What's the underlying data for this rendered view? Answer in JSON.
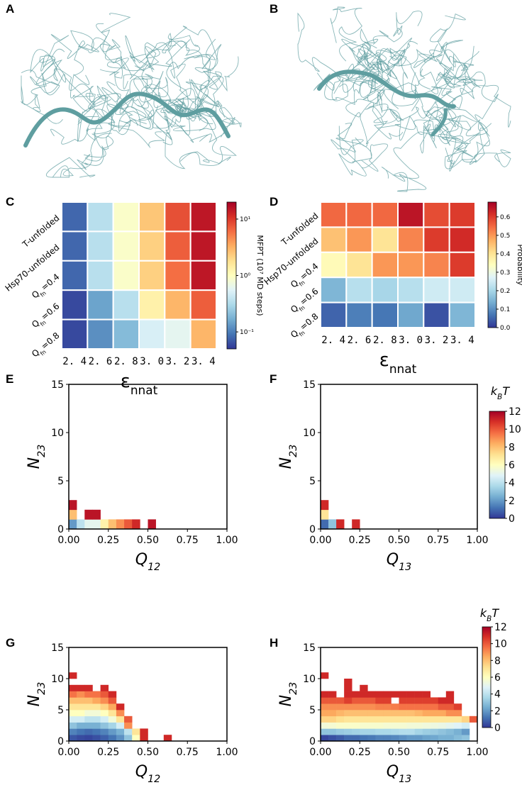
{
  "images": [
    {
      "label": "A"
    },
    {
      "label": "B"
    }
  ],
  "chart_data": [
    {
      "type": "heatmap",
      "label": "C",
      "colormap": "RdYlBu_r",
      "log_color": true,
      "x_categories": [
        "2. 4",
        "2. 6",
        "2. 8",
        "3. 0",
        "3. 2",
        "3. 4"
      ],
      "y_categories": [
        "T-unfolded",
        "Hsp70-unfolded",
        {
          "symbol": "Q",
          "subscript": "fn",
          "suffix": "=0.4"
        },
        {
          "symbol": "Q",
          "subscript": "fn",
          "suffix": "=0.6"
        },
        {
          "symbol": "Q",
          "subscript": "fn",
          "suffix": "=0.8"
        }
      ],
      "x_label": {
        "symbol": "ε",
        "subscript": "nnat"
      },
      "values": [
        [
          0.08,
          0.35,
          0.9,
          2.5,
          8,
          15
        ],
        [
          0.08,
          0.35,
          0.9,
          2.2,
          7,
          15
        ],
        [
          0.08,
          0.35,
          0.9,
          2.2,
          6,
          15
        ],
        [
          0.06,
          0.15,
          0.35,
          1.3,
          3,
          7
        ],
        [
          0.06,
          0.12,
          0.2,
          0.5,
          0.6,
          3
        ]
      ],
      "clim": [
        0.05,
        20
      ],
      "cticks": [
        {
          "value": 0.1,
          "label": "10⁻¹"
        },
        {
          "value": 1,
          "label": "10⁰"
        },
        {
          "value": 10,
          "label": "10¹"
        }
      ],
      "clabel": "MFPT (10⁷ MD steps)"
    },
    {
      "type": "heatmap",
      "label": "D",
      "colormap": "RdYlBu_r",
      "log_color": false,
      "x_categories": [
        "2. 4",
        "2. 6",
        "2. 8",
        "3. 0",
        "3. 2",
        "3. 4"
      ],
      "y_categories": [
        "T-unfolded",
        "Hsp70-unfolded",
        {
          "symbol": "Q",
          "subscript": "fn",
          "suffix": "=0.4"
        },
        {
          "symbol": "Q",
          "subscript": "fn",
          "suffix": "=0.6"
        },
        {
          "symbol": "Q",
          "subscript": "fn",
          "suffix": "=0.8"
        }
      ],
      "x_label": {
        "symbol": "ε",
        "subscript": "nnat"
      },
      "values": [
        [
          0.55,
          0.55,
          0.55,
          0.65,
          0.58,
          0.6
        ],
        [
          0.45,
          0.5,
          0.4,
          0.52,
          0.6,
          0.62
        ],
        [
          0.35,
          0.4,
          0.5,
          0.5,
          0.52,
          0.6
        ],
        [
          0.15,
          0.22,
          0.2,
          0.22,
          0.25,
          0.25
        ],
        [
          0.05,
          0.08,
          0.07,
          0.13,
          0.03,
          0.15
        ]
      ],
      "clim": [
        0,
        0.68
      ],
      "cticks": [
        {
          "value": 0,
          "label": "0.0"
        },
        0.1,
        0.2,
        0.3,
        0.4,
        0.5,
        0.6
      ],
      "clabel": "Probability"
    },
    {
      "type": "histogram2d",
      "label": "E",
      "colormap": "RdYlBu_r",
      "x_label": {
        "symbol": "Q",
        "subscript": "12"
      },
      "y_label": {
        "symbol": "N",
        "subscript": "23"
      },
      "xlim": [
        0,
        1
      ],
      "ylim": [
        0,
        15
      ],
      "xticks": [
        {
          "value": 0,
          "label": "0.00"
        },
        0.25,
        {
          "value": 0.5,
          "label": "0.50"
        },
        0.75,
        {
          "value": 1,
          "label": "1.00"
        }
      ],
      "yticks": [
        0,
        5,
        10,
        15
      ],
      "xbins": [
        0,
        0.05,
        0.1,
        0.15,
        0.2,
        0.25,
        0.3,
        0.35,
        0.4,
        0.45,
        0.5,
        0.55,
        0.6,
        0.65,
        0.7,
        0.75,
        0.8,
        0.85,
        0.9,
        0.95,
        1
      ],
      "ybins": [
        0,
        1,
        2,
        3
      ],
      "clim": [
        0,
        12
      ],
      "values": [
        [
          2,
          4,
          5,
          5,
          6.5,
          8,
          9,
          10,
          11,
          null,
          11.5,
          null,
          null,
          null,
          null,
          null,
          null,
          null,
          null,
          null
        ],
        [
          8,
          null,
          11.5,
          11.5,
          null,
          null,
          null,
          null,
          null,
          null,
          null,
          null,
          null,
          null,
          null,
          null,
          null,
          null,
          null,
          null
        ],
        [
          11.5,
          null,
          null,
          null,
          null,
          null,
          null,
          null,
          null,
          null,
          null,
          null,
          null,
          null,
          null,
          null,
          null,
          null,
          null,
          null
        ]
      ]
    },
    {
      "type": "histogram2d",
      "label": "F",
      "colormap": "RdYlBu_r",
      "x_label": {
        "symbol": "Q",
        "subscript": "13"
      },
      "y_label": {
        "symbol": "N",
        "subscript": "23"
      },
      "xlim": [
        0,
        1
      ],
      "ylim": [
        0,
        15
      ],
      "xticks": [
        {
          "value": 0,
          "label": "0.00"
        },
        0.25,
        {
          "value": 0.5,
          "label": "0.50"
        },
        0.75,
        {
          "value": 1,
          "label": "1.00"
        }
      ],
      "yticks": [
        0,
        5,
        10,
        15
      ],
      "xbins": [
        0,
        0.05,
        0.1,
        0.15,
        0.2,
        0.25,
        0.3,
        0.35,
        0.4,
        0.45,
        0.5,
        0.55,
        0.6,
        0.65,
        0.7,
        0.75,
        0.8,
        0.85,
        0.9,
        0.95,
        1
      ],
      "ybins": [
        0,
        1,
        2,
        3
      ],
      "clim": [
        0,
        12
      ],
      "cticks": [
        0,
        2,
        4,
        6,
        8,
        10,
        12
      ],
      "clabel": {
        "symbol": "k",
        "subscript": "B",
        "suffix": "T"
      },
      "values": [
        [
          1,
          3,
          11,
          null,
          11,
          null,
          null,
          null,
          null,
          null,
          null,
          null,
          null,
          null,
          null,
          null,
          null,
          null,
          null,
          null
        ],
        [
          7,
          null,
          null,
          null,
          null,
          null,
          null,
          null,
          null,
          null,
          null,
          null,
          null,
          null,
          null,
          null,
          null,
          null,
          null,
          null
        ],
        [
          11,
          null,
          null,
          null,
          null,
          null,
          null,
          null,
          null,
          null,
          null,
          null,
          null,
          null,
          null,
          null,
          null,
          null,
          null,
          null
        ]
      ]
    },
    {
      "type": "histogram2d",
      "label": "G",
      "colormap": "RdYlBu_r",
      "x_label": {
        "symbol": "Q",
        "subscript": "12"
      },
      "y_label": {
        "symbol": "N",
        "subscript": "23"
      },
      "xlim": [
        0,
        1
      ],
      "ylim": [
        0,
        15
      ],
      "xticks": [
        {
          "value": 0,
          "label": "0.00"
        },
        0.25,
        {
          "value": 0.5,
          "label": "0.50"
        },
        0.75,
        {
          "value": 1,
          "label": "1.00"
        }
      ],
      "yticks": [
        0,
        5,
        10,
        15
      ],
      "xbins": [
        0,
        0.05,
        0.1,
        0.15,
        0.2,
        0.25,
        0.3,
        0.35,
        0.4,
        0.45,
        0.5,
        0.55,
        0.6,
        0.65,
        0.7,
        0.75,
        0.8,
        0.85,
        0.9,
        0.95,
        1
      ],
      "ybins": [
        0,
        1,
        2,
        3,
        4,
        5,
        6,
        7,
        8,
        9,
        10,
        11
      ],
      "clim": [
        0,
        12
      ],
      "values": [
        [
          0.6,
          0.4,
          0.3,
          0.5,
          0.8,
          1.2,
          1.8,
          3,
          6,
          11,
          null,
          null,
          11,
          null,
          null,
          null,
          null,
          null,
          null,
          null
        ],
        [
          1.5,
          1.2,
          1,
          1.2,
          1.5,
          2,
          2.5,
          4,
          7,
          11,
          null,
          null,
          null,
          null,
          null,
          null,
          null,
          null,
          null,
          null
        ],
        [
          3,
          2.5,
          2.5,
          2.5,
          3,
          3.5,
          4.5,
          9,
          null,
          null,
          null,
          null,
          null,
          null,
          null,
          null,
          null,
          null,
          null,
          null
        ],
        [
          4.5,
          4.5,
          4,
          4,
          4.5,
          5.5,
          7,
          10,
          null,
          null,
          null,
          null,
          null,
          null,
          null,
          null,
          null,
          null,
          null,
          null
        ],
        [
          6,
          6,
          5.5,
          5.5,
          6,
          7,
          9,
          null,
          null,
          null,
          null,
          null,
          null,
          null,
          null,
          null,
          null,
          null,
          null,
          null
        ],
        [
          7,
          7,
          7,
          7,
          7.5,
          8.5,
          11,
          null,
          null,
          null,
          null,
          null,
          null,
          null,
          null,
          null,
          null,
          null,
          null,
          null
        ],
        [
          8,
          8,
          8,
          8.5,
          9,
          10,
          null,
          null,
          null,
          null,
          null,
          null,
          null,
          null,
          null,
          null,
          null,
          null,
          null,
          null
        ],
        [
          9.5,
          9,
          9.5,
          9.5,
          10,
          11,
          null,
          null,
          null,
          null,
          null,
          null,
          null,
          null,
          null,
          null,
          null,
          null,
          null,
          null
        ],
        [
          11,
          11,
          11,
          null,
          11,
          null,
          null,
          null,
          null,
          null,
          null,
          null,
          null,
          null,
          null,
          null,
          null,
          null,
          null,
          null
        ],
        [
          null,
          null,
          null,
          null,
          null,
          null,
          null,
          null,
          null,
          null,
          null,
          null,
          null,
          null,
          null,
          null,
          null,
          null,
          null,
          null
        ],
        [
          11,
          null,
          null,
          null,
          null,
          null,
          null,
          null,
          null,
          null,
          null,
          null,
          null,
          null,
          null,
          null,
          null,
          null,
          null,
          null
        ]
      ]
    },
    {
      "type": "histogram2d",
      "label": "H",
      "colormap": "RdYlBu_r",
      "x_label": {
        "symbol": "Q",
        "subscript": "13"
      },
      "y_label": {
        "symbol": "N",
        "subscript": "23"
      },
      "xlim": [
        0,
        1
      ],
      "ylim": [
        0,
        15
      ],
      "xticks": [
        {
          "value": 0,
          "label": "0.00"
        },
        0.25,
        {
          "value": 0.5,
          "label": "0.50"
        },
        0.75,
        {
          "value": 1,
          "label": "1.00"
        }
      ],
      "yticks": [
        0,
        5,
        10,
        15
      ],
      "xbins": [
        0,
        0.05,
        0.1,
        0.15,
        0.2,
        0.25,
        0.3,
        0.35,
        0.4,
        0.45,
        0.5,
        0.55,
        0.6,
        0.65,
        0.7,
        0.75,
        0.8,
        0.85,
        0.9,
        0.95,
        1
      ],
      "ybins": [
        0,
        1,
        2,
        3,
        4,
        5,
        6,
        7,
        8,
        9,
        10,
        11
      ],
      "clim": [
        0,
        12
      ],
      "cticks": [
        0,
        2,
        4,
        6,
        8,
        10,
        12
      ],
      "clabel": {
        "symbol": "k",
        "subscript": "B",
        "suffix": "T"
      },
      "values": [
        [
          0.3,
          0.5,
          0.7,
          1,
          1,
          1.2,
          1.3,
          1.5,
          1.5,
          1.6,
          1.8,
          2,
          2,
          2.2,
          2.3,
          2.5,
          2.5,
          2.8,
          3,
          null
        ],
        [
          3,
          3,
          3.2,
          3.3,
          3.4,
          3.5,
          3.5,
          3.6,
          3.6,
          3.7,
          3.8,
          3.8,
          3.5,
          3.3,
          3.2,
          3,
          2.8,
          2.5,
          2,
          null
        ],
        [
          5.5,
          5.6,
          5.8,
          5.8,
          5.8,
          5.7,
          5.7,
          5.7,
          5.6,
          5.6,
          5.6,
          5.5,
          5.5,
          5.4,
          5.3,
          5.2,
          5,
          4.8,
          4.5,
          null
        ],
        [
          7.5,
          7.5,
          7.2,
          7,
          7,
          7,
          7,
          7,
          7,
          7,
          7,
          7,
          7,
          7,
          7,
          7,
          7,
          7,
          7.5,
          10
        ],
        [
          8.5,
          8.5,
          8.2,
          8,
          8,
          8,
          8,
          8,
          8,
          8,
          8,
          8,
          8.2,
          8.5,
          8.5,
          8.5,
          9,
          9,
          null,
          null
        ],
        [
          9,
          9,
          9,
          9,
          9,
          9,
          9,
          9.2,
          9.2,
          9.3,
          9.5,
          9.5,
          9.5,
          9.5,
          9.5,
          10,
          10,
          10.5,
          null,
          null
        ],
        [
          10,
          10,
          10,
          10.5,
          10,
          10,
          10,
          10.5,
          10.5,
          null,
          10.5,
          10.5,
          10.5,
          10.5,
          10.5,
          11,
          11,
          null,
          null,
          null
        ],
        [
          11,
          11,
          null,
          11,
          11,
          11,
          11,
          11,
          11,
          11,
          11,
          11,
          11,
          11,
          null,
          null,
          11,
          null,
          null,
          null
        ],
        [
          null,
          null,
          null,
          11,
          null,
          11,
          null,
          null,
          null,
          null,
          null,
          null,
          null,
          null,
          null,
          null,
          null,
          null,
          null,
          null
        ],
        [
          null,
          null,
          null,
          11,
          null,
          null,
          null,
          null,
          null,
          null,
          null,
          null,
          null,
          null,
          null,
          null,
          null,
          null,
          null,
          null
        ],
        [
          11,
          null,
          null,
          null,
          null,
          null,
          null,
          null,
          null,
          null,
          null,
          null,
          null,
          null,
          null,
          null,
          null,
          null,
          null,
          null
        ]
      ]
    }
  ]
}
